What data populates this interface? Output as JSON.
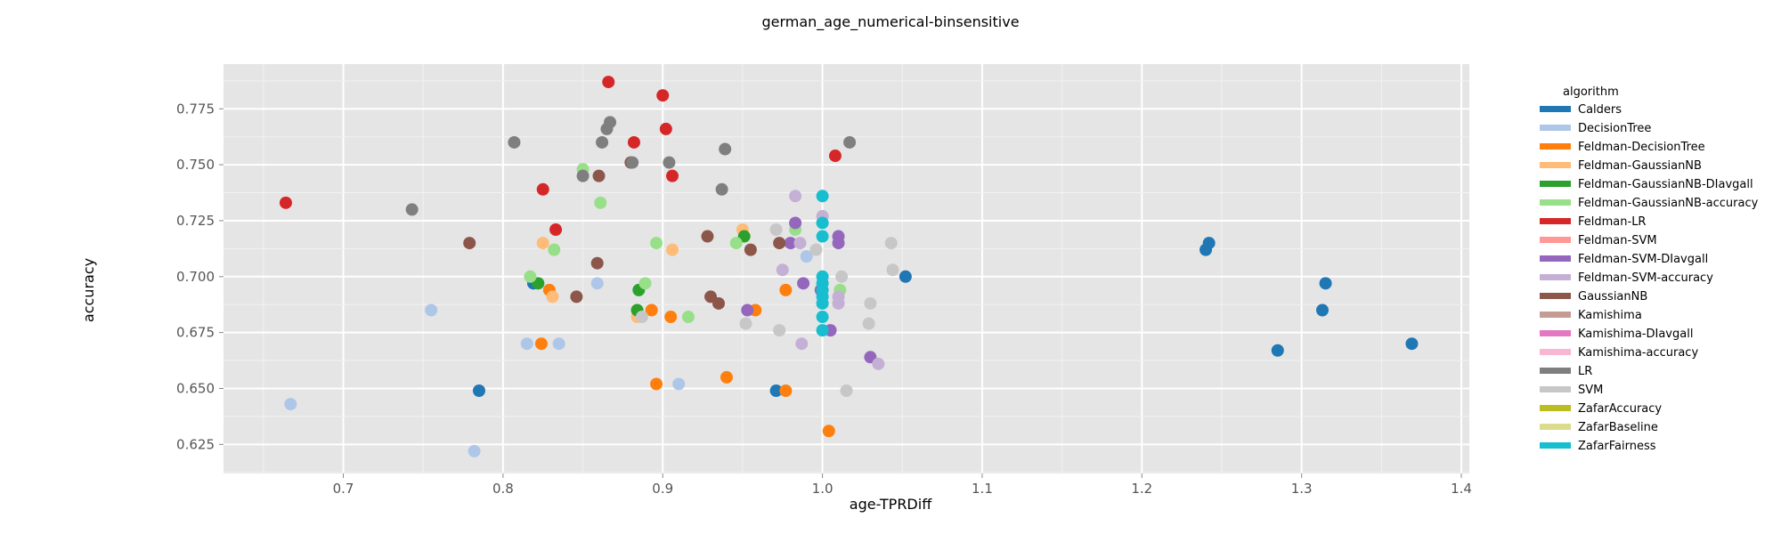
{
  "chart_data": {
    "type": "scatter",
    "title": "german_age_numerical-binsensitive",
    "xlabel": "age-TPRDiff",
    "ylabel": "accuracy",
    "xlim": [
      0.625,
      1.405
    ],
    "ylim": [
      0.612,
      0.795
    ],
    "xticks": [
      "0.7",
      "0.8",
      "0.9",
      "1.0",
      "1.1",
      "1.2",
      "1.3",
      "1.4"
    ],
    "yticks": [
      "0.625",
      "0.650",
      "0.675",
      "0.700",
      "0.725",
      "0.750",
      "0.775"
    ],
    "grid": true,
    "legend_title": "algorithm",
    "legend_position": "right",
    "series": [
      {
        "name": "Calders",
        "color": "#1f77b4",
        "points": [
          [
            0.785,
            0.649
          ],
          [
            0.819,
            0.697
          ],
          [
            0.971,
            0.649
          ],
          [
            1.052,
            0.7
          ],
          [
            1.24,
            0.712
          ],
          [
            1.242,
            0.715
          ],
          [
            1.285,
            0.667
          ],
          [
            1.313,
            0.685
          ],
          [
            1.315,
            0.697
          ],
          [
            1.369,
            0.67
          ]
        ]
      },
      {
        "name": "DecisionTree",
        "color": "#aec7e8",
        "points": [
          [
            0.667,
            0.643
          ],
          [
            0.755,
            0.685
          ],
          [
            0.782,
            0.622
          ],
          [
            0.815,
            0.67
          ],
          [
            0.835,
            0.67
          ],
          [
            0.859,
            0.697
          ],
          [
            0.91,
            0.652
          ],
          [
            0.99,
            0.709
          ]
        ]
      },
      {
        "name": "Feldman-DecisionTree",
        "color": "#ff7f0e",
        "points": [
          [
            0.824,
            0.67
          ],
          [
            0.829,
            0.694
          ],
          [
            0.893,
            0.685
          ],
          [
            0.896,
            0.652
          ],
          [
            0.905,
            0.682
          ],
          [
            0.94,
            0.655
          ],
          [
            0.958,
            0.685
          ],
          [
            0.977,
            0.694
          ],
          [
            0.977,
            0.649
          ],
          [
            1.004,
            0.631
          ]
        ]
      },
      {
        "name": "Feldman-GaussianNB",
        "color": "#ffbb78",
        "points": [
          [
            0.825,
            0.715
          ],
          [
            0.831,
            0.691
          ],
          [
            0.884,
            0.682
          ],
          [
            0.906,
            0.712
          ],
          [
            0.95,
            0.721
          ]
        ]
      },
      {
        "name": "Feldman-GaussianNB-DIavgall",
        "color": "#2ca02c",
        "points": [
          [
            0.822,
            0.697
          ],
          [
            0.884,
            0.685
          ],
          [
            0.885,
            0.694
          ],
          [
            0.951,
            0.718
          ]
        ]
      },
      {
        "name": "Feldman-GaussianNB-accuracy",
        "color": "#98df8a",
        "points": [
          [
            0.817,
            0.7
          ],
          [
            0.832,
            0.712
          ],
          [
            0.85,
            0.748
          ],
          [
            0.861,
            0.733
          ],
          [
            0.889,
            0.697
          ],
          [
            0.896,
            0.715
          ],
          [
            0.916,
            0.682
          ],
          [
            0.946,
            0.715
          ],
          [
            0.983,
            0.721
          ],
          [
            1.011,
            0.694
          ]
        ]
      },
      {
        "name": "Feldman-LR",
        "color": "#d62728",
        "points": [
          [
            0.664,
            0.733
          ],
          [
            0.825,
            0.739
          ],
          [
            0.833,
            0.721
          ],
          [
            0.866,
            0.787
          ],
          [
            0.882,
            0.76
          ],
          [
            0.9,
            0.781
          ],
          [
            0.902,
            0.766
          ],
          [
            0.906,
            0.745
          ],
          [
            1.008,
            0.754
          ]
        ]
      },
      {
        "name": "Feldman-SVM",
        "color": "#ff9896",
        "points": []
      },
      {
        "name": "Feldman-SVM-DIavgall",
        "color": "#9467bd",
        "points": [
          [
            0.953,
            0.685
          ],
          [
            0.98,
            0.715
          ],
          [
            0.983,
            0.724
          ],
          [
            0.988,
            0.697
          ],
          [
            0.999,
            0.694
          ],
          [
            1.005,
            0.676
          ],
          [
            1.01,
            0.718
          ],
          [
            1.01,
            0.715
          ],
          [
            1.03,
            0.664
          ]
        ]
      },
      {
        "name": "Feldman-SVM-accuracy",
        "color": "#c5b0d5",
        "points": [
          [
            0.975,
            0.703
          ],
          [
            0.983,
            0.736
          ],
          [
            0.986,
            0.715
          ],
          [
            0.987,
            0.67
          ],
          [
            1.0,
            0.727
          ],
          [
            1.01,
            0.691
          ],
          [
            1.01,
            0.688
          ],
          [
            1.035,
            0.661
          ]
        ]
      },
      {
        "name": "GaussianNB",
        "color": "#8c564b",
        "points": [
          [
            0.779,
            0.715
          ],
          [
            0.846,
            0.691
          ],
          [
            0.859,
            0.706
          ],
          [
            0.86,
            0.745
          ],
          [
            0.88,
            0.751
          ],
          [
            0.928,
            0.718
          ],
          [
            0.93,
            0.691
          ],
          [
            0.935,
            0.688
          ],
          [
            0.955,
            0.712
          ],
          [
            0.973,
            0.715
          ]
        ]
      },
      {
        "name": "Kamishima",
        "color": "#c49c94",
        "points": []
      },
      {
        "name": "Kamishima-DIavgall",
        "color": "#e377c2",
        "points": []
      },
      {
        "name": "Kamishima-accuracy",
        "color": "#f7b6d2",
        "points": []
      },
      {
        "name": "LR",
        "color": "#7f7f7f",
        "points": [
          [
            0.743,
            0.73
          ],
          [
            0.807,
            0.76
          ],
          [
            0.85,
            0.745
          ],
          [
            0.862,
            0.76
          ],
          [
            0.865,
            0.766
          ],
          [
            0.867,
            0.769
          ],
          [
            0.881,
            0.751
          ],
          [
            0.904,
            0.751
          ],
          [
            0.937,
            0.739
          ],
          [
            0.939,
            0.757
          ],
          [
            1.017,
            0.76
          ]
        ]
      },
      {
        "name": "SVM",
        "color": "#c7c7c7",
        "points": [
          [
            0.887,
            0.682
          ],
          [
            0.952,
            0.679
          ],
          [
            0.971,
            0.721
          ],
          [
            0.973,
            0.676
          ],
          [
            0.996,
            0.712
          ],
          [
            1.012,
            0.7
          ],
          [
            1.015,
            0.649
          ],
          [
            1.029,
            0.679
          ],
          [
            1.03,
            0.688
          ],
          [
            1.043,
            0.715
          ],
          [
            1.044,
            0.703
          ]
        ]
      },
      {
        "name": "ZafarAccuracy",
        "color": "#bcbd22",
        "points": []
      },
      {
        "name": "ZafarBaseline",
        "color": "#dbdb8d",
        "points": []
      },
      {
        "name": "ZafarFairness",
        "color": "#17becf",
        "points": [
          [
            1.0,
            0.736
          ],
          [
            1.0,
            0.724
          ],
          [
            1.0,
            0.718
          ],
          [
            1.0,
            0.7
          ],
          [
            1.0,
            0.697
          ],
          [
            1.0,
            0.694
          ],
          [
            1.0,
            0.691
          ],
          [
            1.0,
            0.688
          ],
          [
            1.0,
            0.682
          ],
          [
            1.0,
            0.676
          ]
        ]
      }
    ]
  }
}
